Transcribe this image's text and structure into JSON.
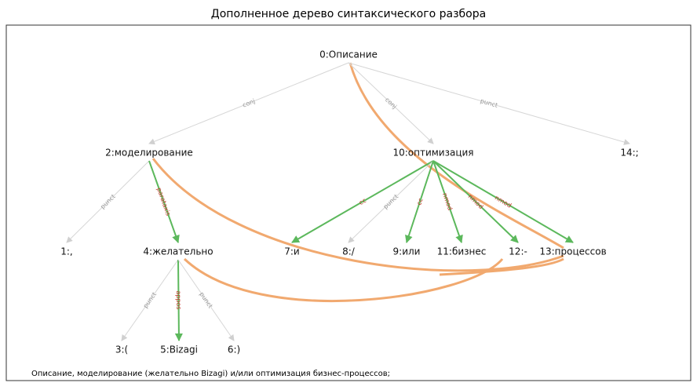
{
  "title": "Дополненное дерево синтаксического разбора",
  "nodes": [
    "0:Описание",
    "1:,",
    "2:моделирование",
    "3:(",
    "4:желательно",
    "5:Bizagi",
    "6:)",
    "7:и",
    "8:/",
    "9:или",
    "10:оптимизация",
    "11:бизнес",
    "12:-",
    "13:процессов",
    "14:;"
  ],
  "edges": [
    "conj",
    "conj",
    "punct",
    "punct",
    "parataxis",
    "punct",
    "appos",
    "punct",
    "cc",
    "punct",
    "cc",
    "nmod",
    "nmod",
    "nmod"
  ],
  "caption": "Описание, моделирование (желательно Bizagi) и/или оптимизация бизнес-процессов;"
}
